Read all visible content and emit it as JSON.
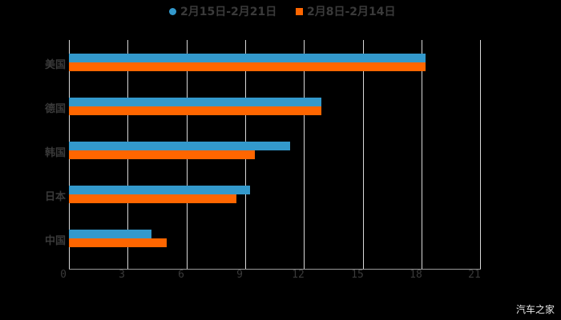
{
  "chart_data": {
    "type": "bar",
    "orientation": "horizontal",
    "title": "",
    "categories": [
      "美国",
      "德国",
      "韩国",
      "日本",
      "中国"
    ],
    "series": [
      {
        "name": "2月15日-2月21日",
        "color": "#3399cc",
        "values": [
          18.2,
          12.9,
          11.3,
          9.25,
          4.2
        ]
      },
      {
        "name": "2月8日-2月14日",
        "color": "#ff6600",
        "values": [
          18.2,
          12.9,
          9.5,
          8.55,
          5.0
        ]
      }
    ],
    "xlabel": "",
    "ylabel": "",
    "xlim": [
      0,
      21
    ],
    "xticks": [
      "0",
      "3",
      "6",
      "9",
      "12",
      "15",
      "18",
      "21"
    ],
    "grid": true,
    "legend_position": "top"
  },
  "legend": {
    "series1": "2月15日-2月21日",
    "series2": "2月8日-2月14日"
  },
  "watermark": "汽车之家"
}
